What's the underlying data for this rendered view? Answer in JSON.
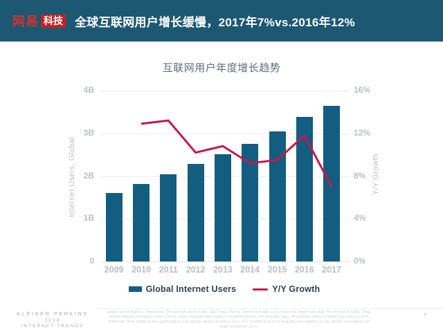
{
  "header": {
    "logo_text": "网易",
    "logo_badge": "科技",
    "title": "全球互联网用户增长缓慢，2017年7%vs.2016年12%"
  },
  "chart_data": {
    "type": "bar",
    "subtype": "combo-bar-line-dual-axis",
    "title": "互联网用户年度增长趋势",
    "categories": [
      "2009",
      "2010",
      "2011",
      "2012",
      "2013",
      "2014",
      "2015",
      "2016",
      "2017"
    ],
    "series": [
      {
        "name": "Global Internet Users",
        "type": "bar",
        "axis": "left",
        "unit": "billions",
        "color": "#135d81",
        "values": [
          1.6,
          1.82,
          2.04,
          2.28,
          2.51,
          2.76,
          3.04,
          3.39,
          3.64
        ]
      },
      {
        "name": "Y/Y Growth",
        "type": "line",
        "axis": "right",
        "unit": "percent",
        "color": "#c2194b",
        "values": [
          null,
          12.9,
          13.2,
          10.2,
          10.8,
          9.2,
          9.5,
          11.8,
          7.0
        ]
      }
    ],
    "left_axis": {
      "label": "Internet Users, Global",
      "ticks": [
        "4B",
        "3B",
        "2B",
        "1B",
        "0"
      ],
      "min": 0,
      "max": 4
    },
    "right_axis": {
      "label": "Y/Y Growth",
      "ticks": [
        "16%",
        "12%",
        "8%",
        "4%",
        "0%"
      ],
      "min": 0,
      "max": 16
    },
    "grid": true,
    "legend_position": "bottom"
  },
  "footer": {
    "brand_lines": [
      "KLEINER PERKINS",
      "2018",
      "INTERNET TRENDS"
    ],
    "source_note": "Source: United Nations / International Telecommunications Union, USA Census Bureau. Internet user data is as of mid-year. Internet user data: Pew Research (USA), China Internet Network Information Center (China), Islamic Republic News Agency / InternetWorldStats / KP estimates (Iran), KP estimates based on IAMAI data (India), & APJII (Indonesia). Note: Historical data (particularly in Sub-Saharan Africa) revised by ITU in 2017 to better account for dual-SIM subscriptions (i.e. two Internet subscriptions per single smartphone user).",
    "page_number": "7"
  },
  "colors": {
    "header_bg": "#1d5873",
    "logo_red": "#c32220",
    "bar": "#135d81",
    "line": "#c2194b",
    "chart_title_text": "#5d6e7e",
    "axis_text": "#b9bfc5",
    "legend_text": "#2e4154",
    "footer_brand_text": "#a6adb2",
    "source_text": "#cbd0d4",
    "gridline": "#ededed"
  }
}
